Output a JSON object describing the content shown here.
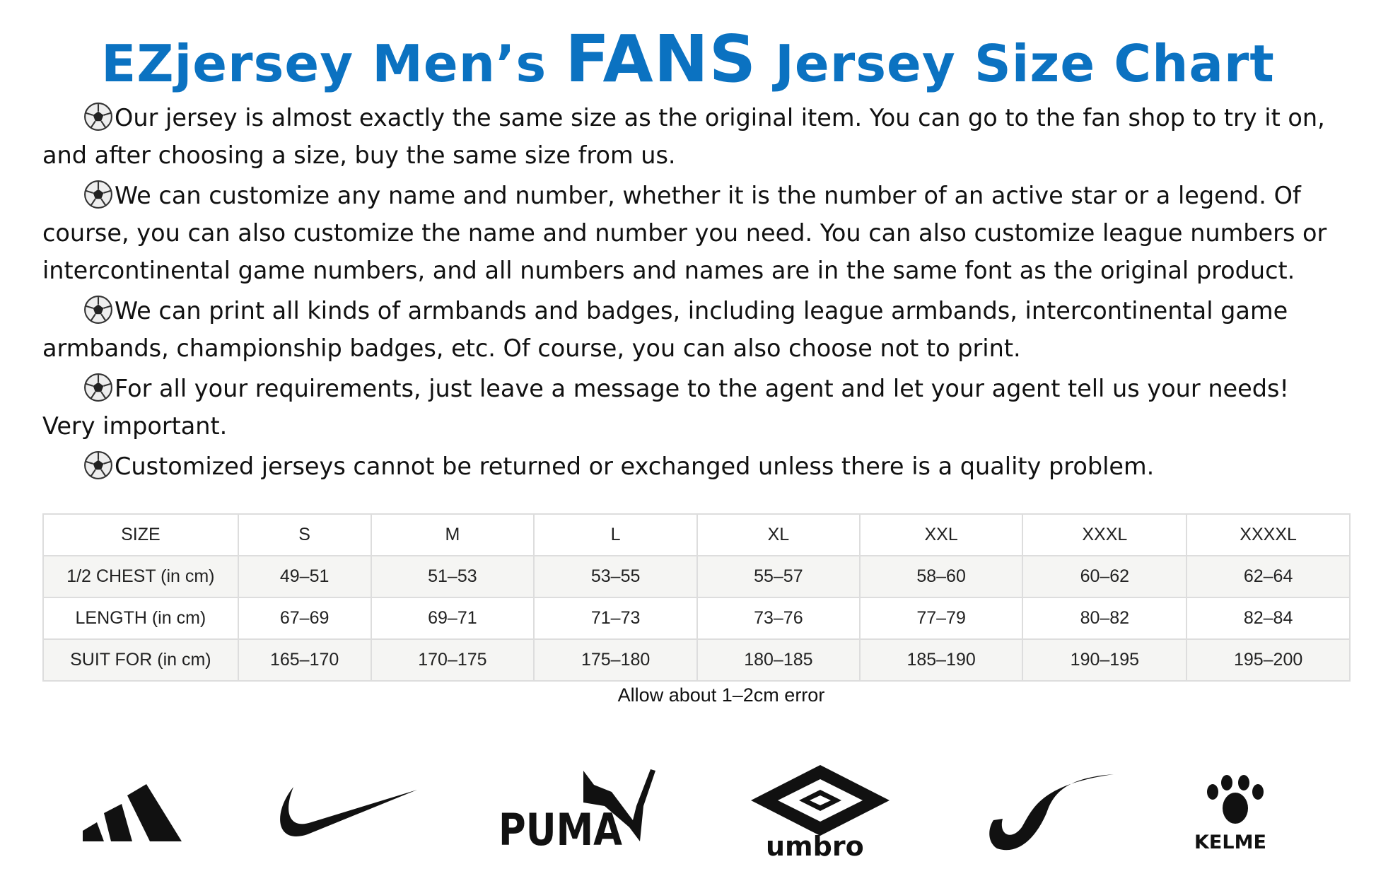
{
  "title": {
    "part1": "EZjersey Men’s ",
    "part2": "FANS",
    "part3": " Jersey Size Chart",
    "color": "#0b72c1"
  },
  "paragraphs": [
    "Our jersey is almost exactly the same size as the original item. You can go to the fan shop to try it on, and after choosing a size, buy the same size from us.",
    "We can customize any name and number, whether it is the number of an active star or a legend. Of course, you can also customize the name and number you need. You can also customize league numbers or intercontinental game numbers, and all numbers and names are in the same font as the original product.",
    "We can print all kinds of armbands and badges, including league armbands, intercontinental game armbands, championship badges, etc. Of course, you can also choose not to print.",
    "For all your requirements, just leave a message to the agent and let your agent tell us your needs! Very important.",
    "Customized jerseys cannot be returned or exchanged unless there is a quality problem."
  ],
  "bullet_icon": "soccer-ball-icon",
  "table": {
    "rows": [
      [
        "SIZE",
        "S",
        "M",
        "L",
        "XL",
        "XXL",
        "XXXL",
        "XXXXL"
      ],
      [
        "1/2 CHEST  (in cm)",
        "49–51",
        "51–53",
        "53–55",
        "55–57",
        "58–60",
        "60–62",
        "62–64"
      ],
      [
        "LENGTH  (in cm)",
        "67–69",
        "69–71",
        "71–73",
        "73–76",
        "77–79",
        "80–82",
        "82–84"
      ],
      [
        "SUIT FOR  (in cm)",
        "165–170",
        "170–175",
        "175–180",
        "180–185",
        "185–190",
        "190–195",
        "195–200"
      ]
    ]
  },
  "caption": "Allow about 1–2cm error",
  "logos": {
    "adidas": "adidas",
    "nike": "nike",
    "puma": "PUMA",
    "umbro": "umbro",
    "joma": "joma",
    "kelme": "KELME"
  }
}
